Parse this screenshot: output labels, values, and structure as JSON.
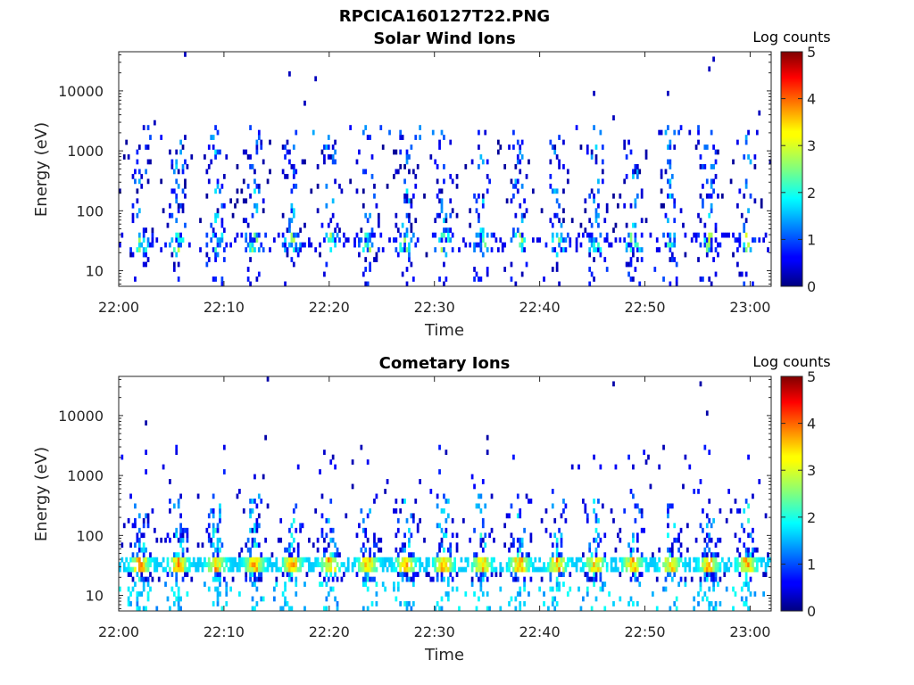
{
  "figure": {
    "title": "RPCICA160127T22.PNG"
  },
  "chart_data": [
    {
      "type": "heatmap",
      "title": "Solar Wind Ions",
      "xlabel": "Time",
      "ylabel": "Energy (eV)",
      "x_ticks": [
        "22:00",
        "22:10",
        "22:20",
        "22:30",
        "22:40",
        "22:50",
        "23:00"
      ],
      "xlim": [
        "22:00",
        "23:02"
      ],
      "y_scale": "log",
      "y_ticks": [
        "10",
        "100",
        "1000",
        "10000"
      ],
      "ylim": [
        5.5,
        45000
      ],
      "colorbar": {
        "title": "Log counts",
        "ticks": [
          "0",
          "1",
          "2",
          "3",
          "4",
          "5"
        ],
        "range": [
          0,
          5
        ],
        "colormap": "jet"
      },
      "activity_profile": "sparse",
      "dominant_energy_band_eV": [
        20,
        45
      ],
      "peak_log_counts_approx": 3.0
    },
    {
      "type": "heatmap",
      "title": "Cometary Ions",
      "xlabel": "Time",
      "ylabel": "Energy (eV)",
      "x_ticks": [
        "22:00",
        "22:10",
        "22:20",
        "22:30",
        "22:40",
        "22:50",
        "23:00"
      ],
      "xlim": [
        "22:00",
        "23:02"
      ],
      "y_scale": "log",
      "y_ticks": [
        "10",
        "100",
        "1000",
        "10000"
      ],
      "ylim": [
        5.5,
        45000
      ],
      "colorbar": {
        "title": "Log counts",
        "ticks": [
          "0",
          "1",
          "2",
          "3",
          "4",
          "5"
        ],
        "range": [
          0,
          5
        ],
        "colormap": "jet"
      },
      "activity_profile": "dense",
      "dominant_energy_band_eV": [
        25,
        45
      ],
      "peak_log_counts_approx": 3.9
    }
  ]
}
